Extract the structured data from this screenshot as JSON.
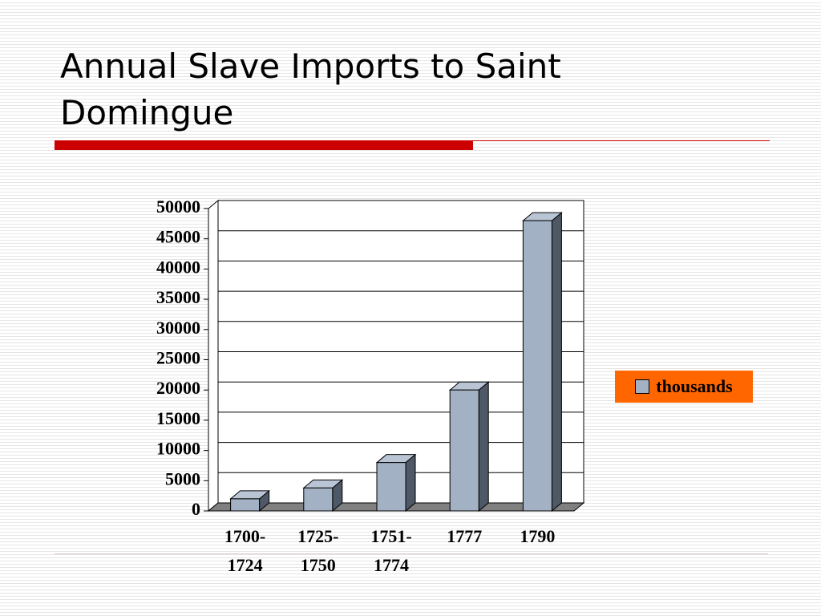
{
  "chart_data": {
    "type": "bar3d",
    "title": "Annual Slave Imports to Saint Domingue",
    "categories": [
      "1700-1724",
      "1725-1750",
      "1751-1774",
      "1777",
      "1790"
    ],
    "series": [
      {
        "name": "thousands",
        "color": "#a3b1c4",
        "values": [
          2000,
          3800,
          8000,
          20000,
          48000
        ]
      }
    ],
    "ylim": [
      0,
      50000
    ],
    "yticks": [
      0,
      5000,
      10000,
      15000,
      20000,
      25000,
      30000,
      35000,
      40000,
      45000,
      50000
    ],
    "grid": true,
    "legend": "right"
  }
}
